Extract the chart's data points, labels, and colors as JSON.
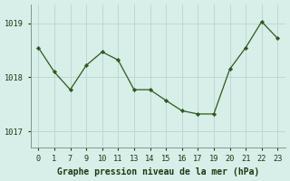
{
  "x_labels": [
    "0",
    "1",
    "7",
    "9",
    "10",
    "11",
    "13",
    "14",
    "15",
    "16",
    "17",
    "19",
    "20",
    "21",
    "22",
    "23"
  ],
  "y": [
    1018.55,
    1018.1,
    1017.77,
    1018.22,
    1018.47,
    1018.32,
    1017.77,
    1017.77,
    1017.57,
    1017.38,
    1017.32,
    1017.32,
    1018.15,
    1018.55,
    1019.03,
    1018.72
  ],
  "line_color": "#2d5a1b",
  "marker_color": "#2d5a1b",
  "bg_color": "#d8eee9",
  "grid_color": "#b8d5cf",
  "xlabel": "Graphe pression niveau de la mer (hPa)",
  "yticks": [
    1017,
    1018,
    1019
  ],
  "ylim": [
    1016.7,
    1019.35
  ],
  "xlabel_fontsize": 7.0,
  "tick_fontsize": 6.2,
  "label_color": "#1a3a10"
}
